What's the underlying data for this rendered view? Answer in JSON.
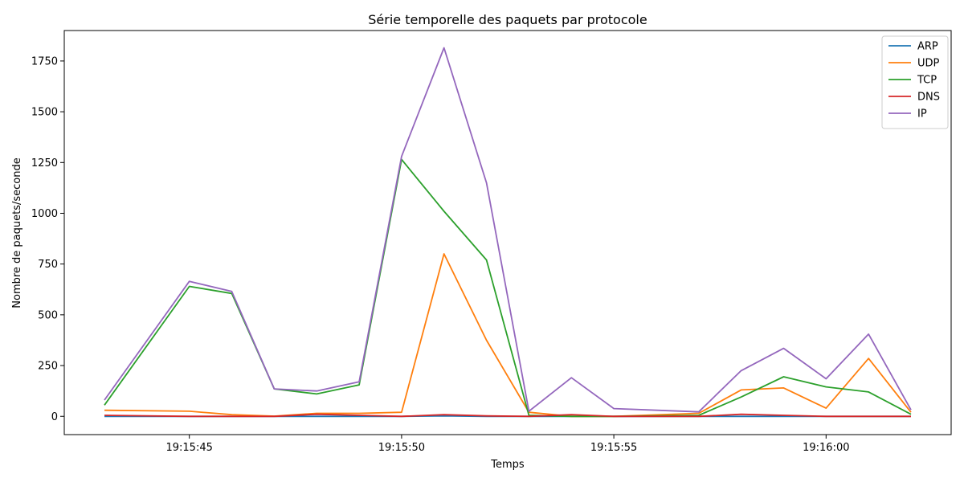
{
  "chart_data": {
    "type": "line",
    "title": "Série temporelle des paquets par protocole",
    "xlabel": "Temps",
    "ylabel": "Nombre de paquets/seconde",
    "x": [
      "19:15:43",
      "19:15:44",
      "19:15:45",
      "19:15:46",
      "19:15:47",
      "19:15:48",
      "19:15:49",
      "19:15:50",
      "19:15:51",
      "19:15:52",
      "19:15:53",
      "19:15:54",
      "19:15:55",
      "19:15:56",
      "19:15:57",
      "19:15:58",
      "19:15:59",
      "19:16:00",
      "19:16:01",
      "19:16:02"
    ],
    "x_tick_labels": [
      "19:15:45",
      "19:15:50",
      "19:15:55",
      "19:16:00"
    ],
    "y_ticks": [
      0,
      250,
      500,
      750,
      1000,
      1250,
      1500,
      1750
    ],
    "ylim": [
      -90,
      1900
    ],
    "grid": false,
    "legend_position": "top-right",
    "series": [
      {
        "name": "ARP",
        "color": "#1f77b4",
        "values": [
          0,
          null,
          0,
          0,
          0,
          0,
          0,
          0,
          2,
          0,
          0,
          0,
          0,
          null,
          0,
          0,
          0,
          0,
          0,
          0
        ]
      },
      {
        "name": "UDP",
        "color": "#ff7f0e",
        "values": [
          30,
          null,
          25,
          8,
          1,
          15,
          15,
          20,
          800,
          375,
          20,
          0,
          0,
          null,
          15,
          130,
          140,
          40,
          285,
          20
        ]
      },
      {
        "name": "TCP",
        "color": "#2ca02c",
        "values": [
          55,
          null,
          640,
          605,
          135,
          110,
          155,
          1265,
          1010,
          770,
          5,
          0,
          0,
          null,
          5,
          95,
          195,
          145,
          120,
          10
        ]
      },
      {
        "name": "DNS",
        "color": "#d62728",
        "values": [
          5,
          null,
          0,
          0,
          0,
          10,
          5,
          0,
          8,
          2,
          0,
          8,
          0,
          null,
          0,
          10,
          5,
          0,
          0,
          0
        ]
      },
      {
        "name": "IP",
        "color": "#9467bd",
        "values": [
          80,
          null,
          665,
          615,
          135,
          125,
          170,
          1280,
          1815,
          1150,
          25,
          190,
          38,
          null,
          22,
          225,
          335,
          185,
          405,
          32
        ]
      }
    ]
  }
}
